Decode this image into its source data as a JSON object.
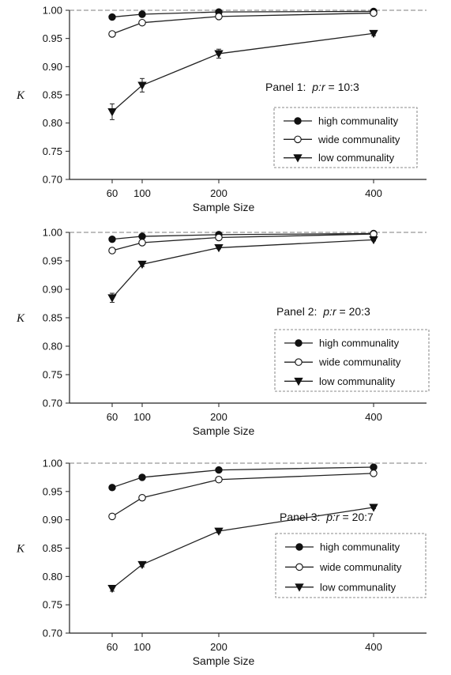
{
  "chart_data": [
    {
      "type": "line",
      "panel_label": "Panel 1:",
      "panel_ratio_var": "p:r",
      "panel_ratio_value": " = 10:3",
      "xlabel": "Sample Size",
      "ylabel": "K",
      "x": [
        60,
        100,
        200,
        400
      ],
      "xticks": [
        "60",
        "100",
        "200",
        "400"
      ],
      "ylim": [
        0.7,
        1.0
      ],
      "yticks": [
        "0.70",
        "0.75",
        "0.80",
        "0.85",
        "0.90",
        "0.95",
        "1.00"
      ],
      "series": [
        {
          "name": "high communality",
          "marker": "filled-circle",
          "values": [
            0.988,
            0.993,
            0.997,
            0.998
          ],
          "errors": [
            0.002,
            0.002,
            0.001,
            0.001
          ]
        },
        {
          "name": "wide communality",
          "marker": "open-circle",
          "values": [
            0.958,
            0.978,
            0.989,
            0.995
          ],
          "errors": [
            0.003,
            0.003,
            0.002,
            0.001
          ]
        },
        {
          "name": "low communality",
          "marker": "filled-triangle",
          "values": [
            0.82,
            0.867,
            0.923,
            0.959
          ],
          "errors": [
            0.014,
            0.012,
            0.008,
            0.004
          ]
        }
      ]
    },
    {
      "type": "line",
      "panel_label": "Panel 2:",
      "panel_ratio_var": "p:r",
      "panel_ratio_value": " = 20:3",
      "xlabel": "Sample Size",
      "ylabel": "K",
      "x": [
        60,
        100,
        200,
        400
      ],
      "xticks": [
        "60",
        "100",
        "200",
        "400"
      ],
      "ylim": [
        0.7,
        1.0
      ],
      "yticks": [
        "0.70",
        "0.75",
        "0.80",
        "0.85",
        "0.90",
        "0.95",
        "1.00"
      ],
      "series": [
        {
          "name": "high communality",
          "marker": "filled-circle",
          "values": [
            0.988,
            0.993,
            0.996,
            0.998
          ],
          "errors": [
            0.002,
            0.001,
            0.001,
            0.001
          ]
        },
        {
          "name": "wide communality",
          "marker": "open-circle",
          "values": [
            0.968,
            0.982,
            0.991,
            0.997
          ],
          "errors": [
            0.002,
            0.002,
            0.001,
            0.001
          ]
        },
        {
          "name": "low communality",
          "marker": "filled-triangle",
          "values": [
            0.885,
            0.944,
            0.973,
            0.987
          ],
          "errors": [
            0.008,
            0.004,
            0.002,
            0.002
          ]
        }
      ]
    },
    {
      "type": "line",
      "panel_label": "Panel 3:",
      "panel_ratio_var": "p:r",
      "panel_ratio_value": " = 20:7",
      "xlabel": "Sample Size",
      "ylabel": "K",
      "x": [
        60,
        100,
        200,
        400
      ],
      "xticks": [
        "60",
        "100",
        "200",
        "400"
      ],
      "ylim": [
        0.7,
        1.0
      ],
      "yticks": [
        "0.70",
        "0.75",
        "0.80",
        "0.85",
        "0.90",
        "0.95",
        "1.00"
      ],
      "series": [
        {
          "name": "high communality",
          "marker": "filled-circle",
          "values": [
            0.957,
            0.975,
            0.988,
            0.993
          ],
          "errors": [
            0.002,
            0.002,
            0.001,
            0.001
          ]
        },
        {
          "name": "wide communality",
          "marker": "open-circle",
          "values": [
            0.906,
            0.939,
            0.971,
            0.982
          ],
          "errors": [
            0.003,
            0.003,
            0.002,
            0.002
          ]
        },
        {
          "name": "low communality",
          "marker": "filled-triangle",
          "values": [
            0.779,
            0.821,
            0.88,
            0.922
          ],
          "errors": [
            0.005,
            0.004,
            0.003,
            0.002
          ]
        }
      ]
    }
  ]
}
